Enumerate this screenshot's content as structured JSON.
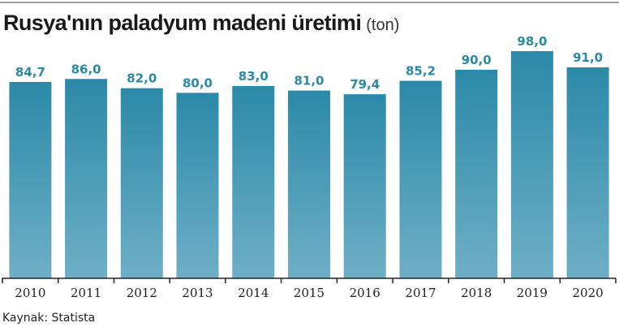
{
  "title": "Rusya'nın paladyum madeni üretimi",
  "unit": "(ton)",
  "source": "Kaynak: Statista",
  "colors": {
    "bar_top": "#2b8aa8",
    "bar_bottom": "#6eafc6",
    "label": "#2b8aa8",
    "axis": "#222222"
  },
  "chart_data": {
    "type": "bar",
    "title": "Rusya'nın paladyum madeni üretimi",
    "ylabel": "",
    "xlabel": "",
    "categories": [
      "2010",
      "2011",
      "2012",
      "2013",
      "2014",
      "2015",
      "2016",
      "2017",
      "2018",
      "2019",
      "2020"
    ],
    "values": [
      84.7,
      86.0,
      82.0,
      80.0,
      83.0,
      81.0,
      79.4,
      85.2,
      90.0,
      98.0,
      91.0
    ],
    "value_labels": [
      "84,7",
      "86,0",
      "82,0",
      "80,0",
      "83,0",
      "81,0",
      "79,4",
      "85,2",
      "90,0",
      "98,0",
      "91,0"
    ],
    "ylim": [
      0,
      98
    ],
    "grid": false,
    "legend": "none"
  }
}
